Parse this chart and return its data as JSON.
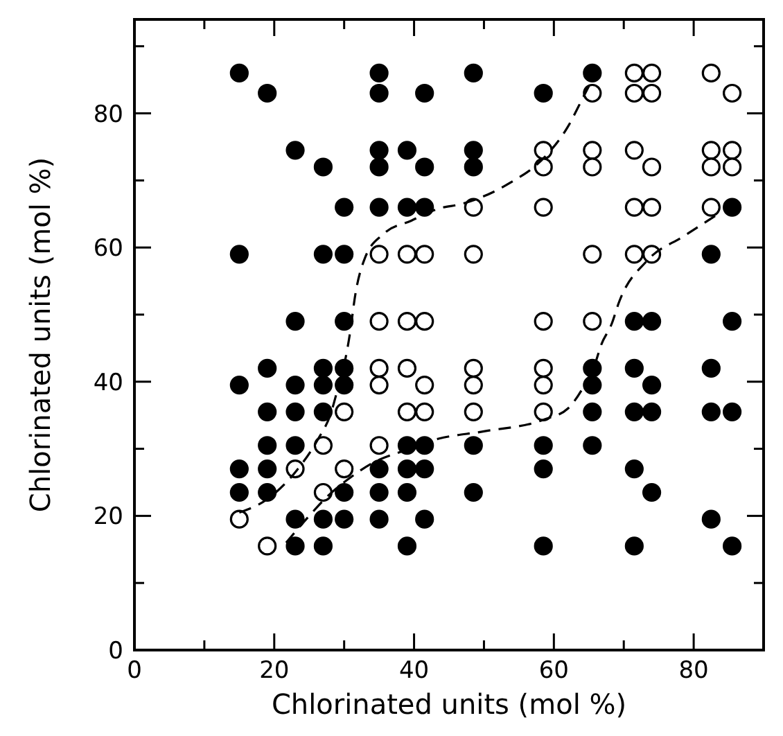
{
  "chart_data": {
    "type": "scatter",
    "xlabel": "Chlorinated units (mol %)",
    "ylabel": "Chlorinated units (mol %)",
    "xlim": [
      0,
      90
    ],
    "ylim": [
      0,
      94
    ],
    "xticks": [
      0,
      {
        "value": 10,
        "label": null
      },
      20,
      {
        "value": 30,
        "label": null
      },
      40,
      {
        "value": 50,
        "label": null
      },
      60,
      {
        "value": 70,
        "label": null
      },
      80,
      {
        "value": 90,
        "label": null
      }
    ],
    "yticks": [
      0,
      {
        "value": 10,
        "label": null
      },
      20,
      {
        "value": 30,
        "label": null
      },
      40,
      {
        "value": 50,
        "label": null
      },
      60,
      {
        "value": 70,
        "label": null
      },
      80,
      {
        "value": 90,
        "label": null
      }
    ],
    "grid": false,
    "marker": "circle",
    "series": [
      {
        "color": "#000000",
        "x": [
          15,
          19,
          35,
          35,
          41.5,
          23,
          35,
          39,
          27,
          35,
          41.5,
          30,
          35,
          39,
          41.5,
          15,
          27,
          30,
          23,
          30,
          48.5,
          58.5,
          65.5,
          48.5,
          48.5,
          85.5,
          82.5,
          71.5,
          74,
          85.5,
          19,
          27,
          30,
          15,
          23,
          27,
          30,
          19,
          23,
          27,
          19,
          23,
          39,
          41.5,
          15,
          19,
          35,
          39,
          41.5,
          15,
          19,
          30,
          35,
          39,
          23,
          27,
          30,
          35,
          41.5,
          23,
          27,
          39,
          65.5,
          71.5,
          82.5,
          65.5,
          74,
          65.5,
          71.5,
          74,
          82.5,
          85.5,
          48.5,
          58.5,
          65.5,
          58.5,
          71.5,
          48.5,
          74,
          82.5,
          58.5,
          71.5,
          85.5
        ],
        "values": [
          86,
          83,
          86,
          83,
          83,
          74.5,
          74.5,
          74.5,
          72,
          72,
          72,
          66,
          66,
          66,
          66,
          59,
          59,
          59,
          49,
          49,
          86,
          83,
          86,
          74.5,
          72,
          66,
          59,
          49,
          49,
          49,
          42,
          42,
          42,
          39.5,
          39.5,
          39.5,
          39.5,
          35.5,
          35.5,
          35.5,
          30.5,
          30.5,
          30.5,
          30.5,
          27,
          27,
          27,
          27,
          27,
          23.5,
          23.5,
          23.5,
          23.5,
          23.5,
          19.5,
          19.5,
          19.5,
          19.5,
          19.5,
          15.5,
          15.5,
          15.5,
          42,
          42,
          42,
          39.5,
          39.5,
          35.5,
          35.5,
          35.5,
          35.5,
          35.5,
          30.5,
          30.5,
          30.5,
          27,
          27,
          23.5,
          23.5,
          19.5,
          15.5,
          15.5,
          15.5
        ]
      },
      {
        "color": "#ffffff",
        "x": [
          35,
          39,
          41.5,
          35,
          39,
          41.5,
          65.5,
          71.5,
          74,
          71.5,
          74,
          82.5,
          85.5,
          58.5,
          58.5,
          65.5,
          65.5,
          71.5,
          74,
          82.5,
          85.5,
          82.5,
          85.5,
          48.5,
          58.5,
          71.5,
          74,
          82.5,
          48.5,
          65.5,
          71.5,
          74,
          58.5,
          65.5,
          35,
          39,
          35,
          41.5,
          30,
          39,
          41.5,
          27,
          35,
          23,
          30,
          27,
          15,
          19,
          48.5,
          58.5,
          48.5,
          58.5,
          48.5,
          58.5
        ],
        "values": [
          59,
          59,
          59,
          49,
          49,
          49,
          83,
          86,
          86,
          83,
          83,
          86,
          83,
          74.5,
          72,
          74.5,
          72,
          74.5,
          72,
          74.5,
          74.5,
          72,
          72,
          66,
          66,
          66,
          66,
          66,
          59,
          59,
          59,
          59,
          49,
          49,
          42,
          42,
          39.5,
          39.5,
          35.5,
          35.5,
          35.5,
          30.5,
          30.5,
          27,
          27,
          23.5,
          19.5,
          15.5,
          42,
          42,
          39.5,
          39.5,
          35.5,
          35.5
        ]
      },
      {
        "type": "line",
        "color": "#000000",
        "marker": "none",
        "line_style": "dashed",
        "x": [
          15,
          19,
          23,
          26.3,
          28,
          29.1,
          30.2,
          30.8,
          31.6,
          33,
          35.6,
          39.6,
          43.5,
          46.8,
          53.5,
          58.7,
          62,
          64,
          66.7
        ],
        "values": [
          20.5,
          22.5,
          26.5,
          31.5,
          35,
          39,
          43.5,
          47,
          53,
          58.5,
          62,
          64,
          65.8,
          66.5,
          69.5,
          73.5,
          78,
          82,
          87.5
        ]
      },
      {
        "type": "line",
        "color": "#000000",
        "marker": "none",
        "line_style": "dashed",
        "x": [
          21.7,
          25,
          27.7,
          31,
          34.3,
          38.2,
          43.5,
          50,
          58.7,
          62,
          64,
          66,
          66.7,
          68.3,
          69.3,
          73.3,
          78.6,
          83.2
        ],
        "values": [
          16,
          20,
          23,
          25.8,
          28,
          29.6,
          31.5,
          32.6,
          34.4,
          36,
          38.8,
          43,
          45.3,
          48.7,
          51.8,
          58,
          61.7,
          64.8
        ]
      }
    ]
  }
}
